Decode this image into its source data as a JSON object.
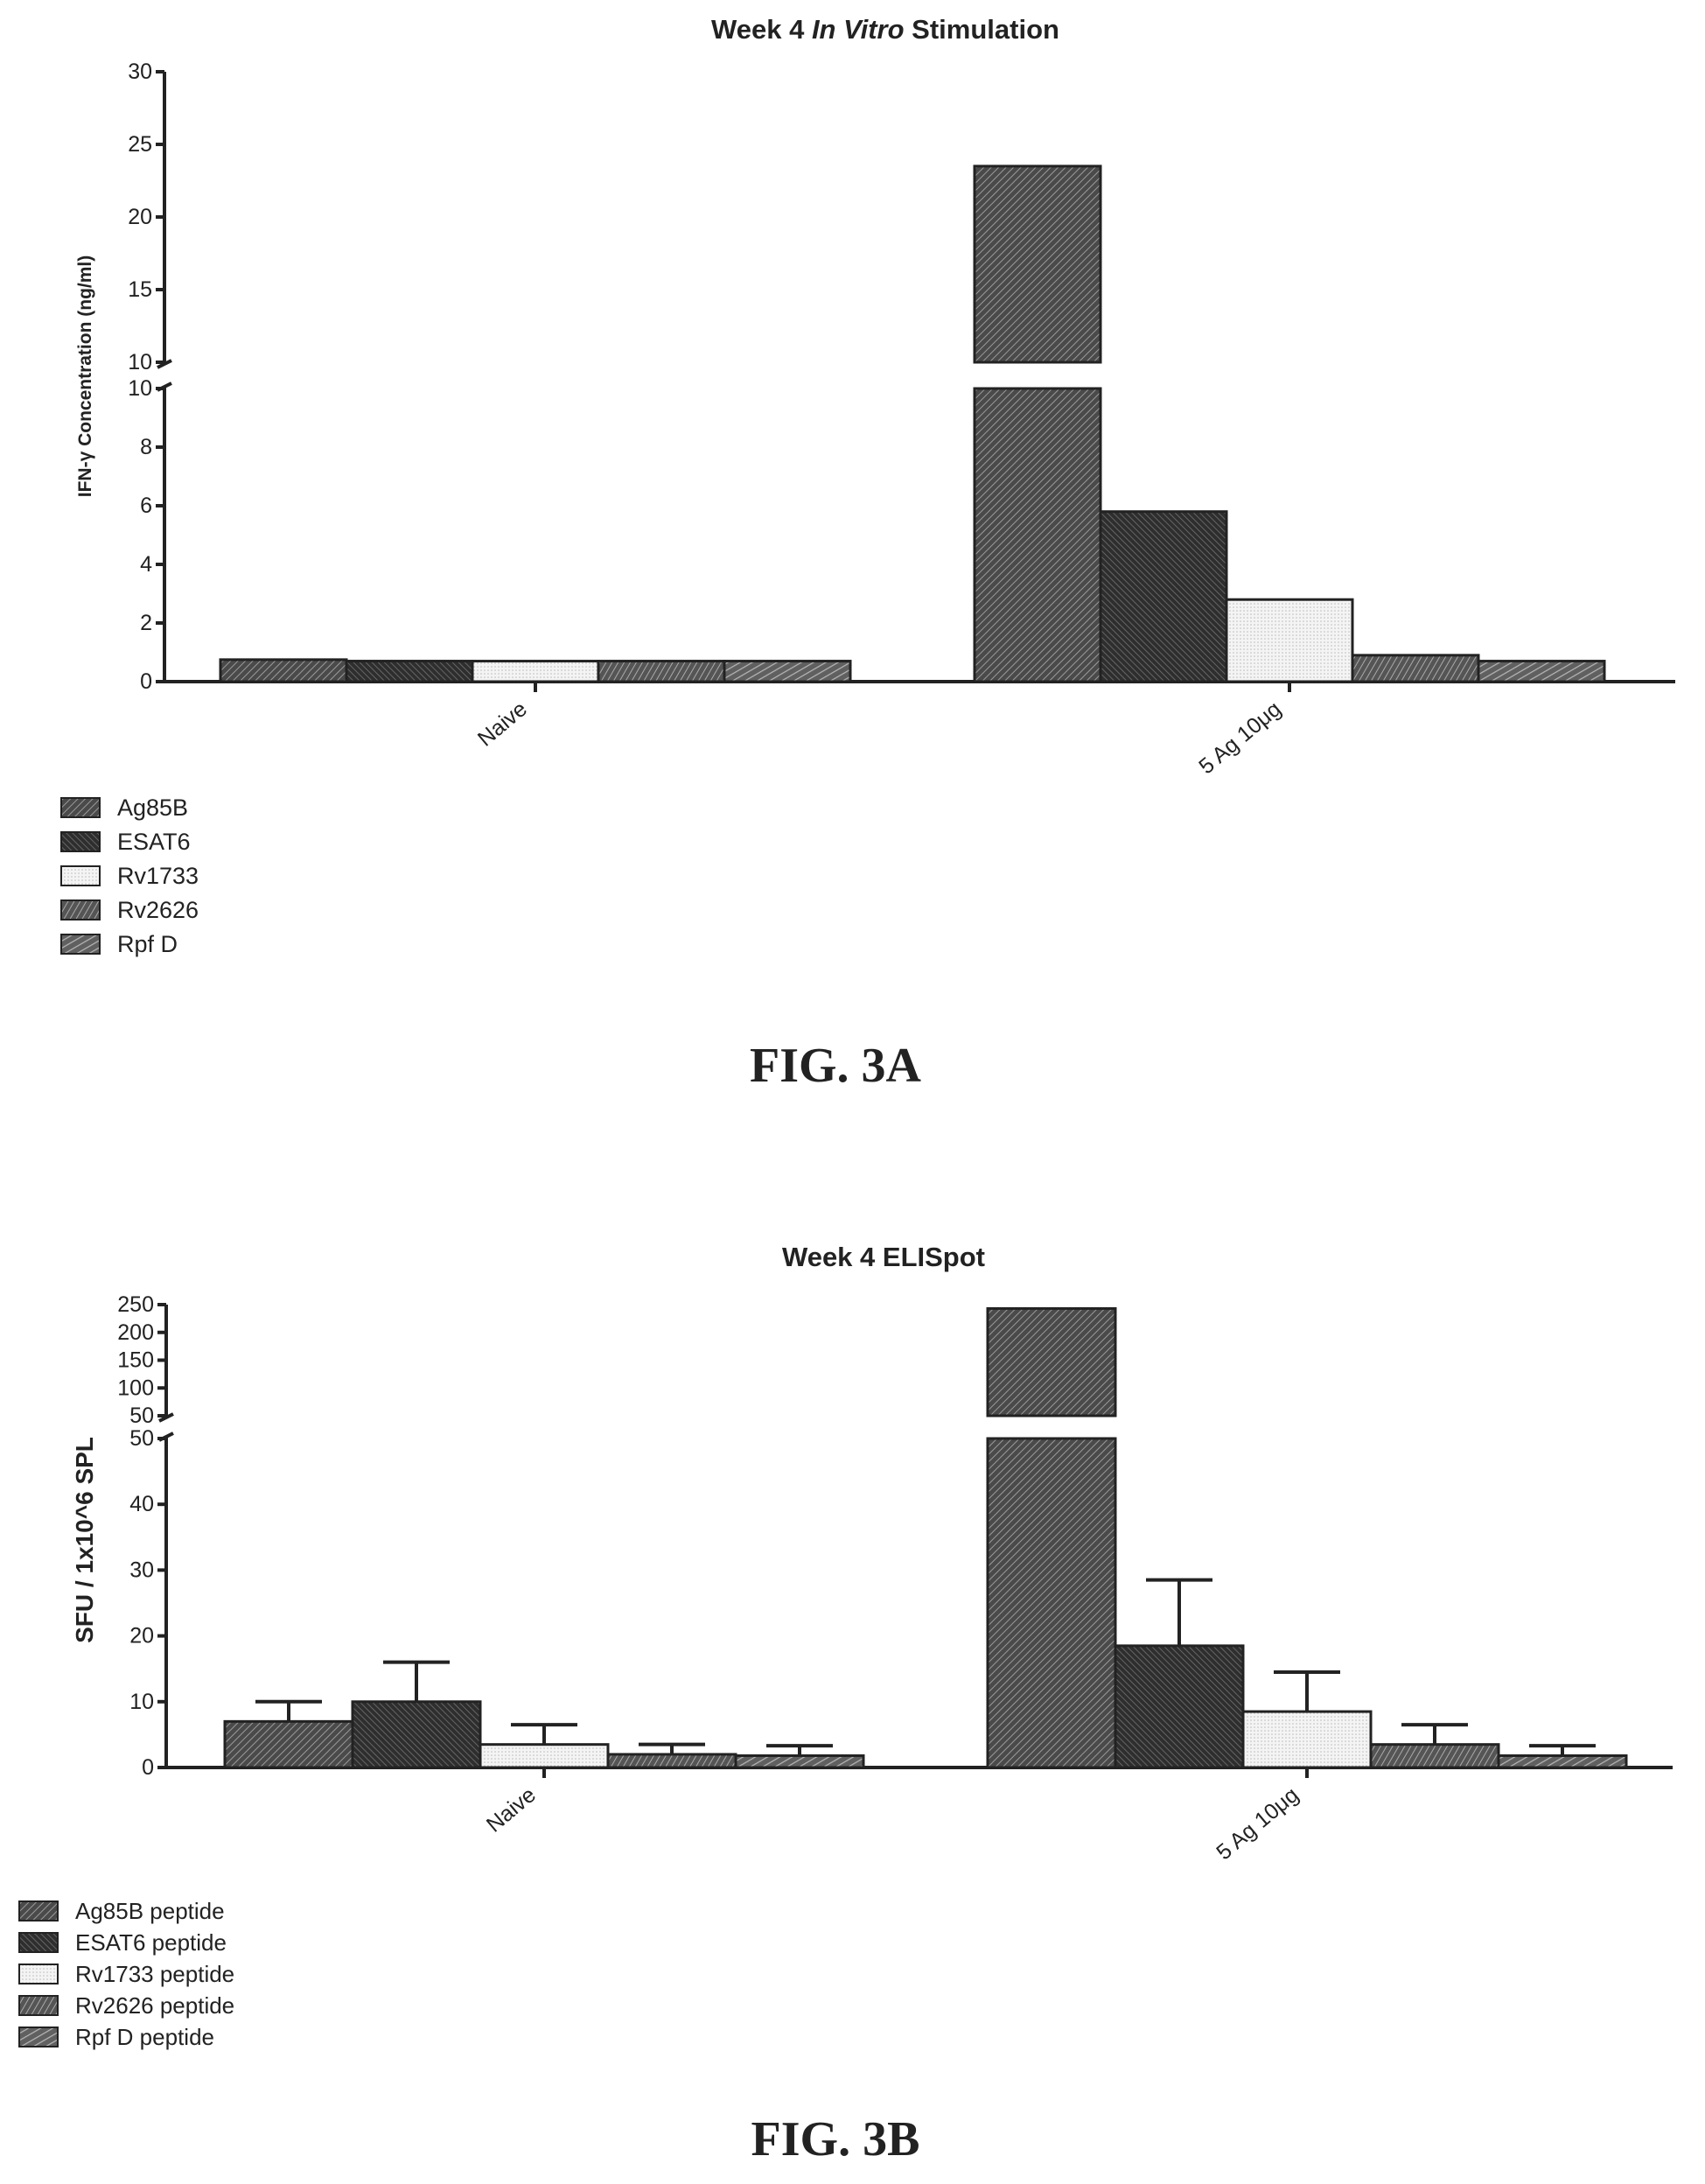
{
  "colors": {
    "pattern_dark": "#3a3a3a",
    "pattern_mid": "#5a5a5a",
    "pattern_light": "#e8e8e8",
    "axis": "#222222"
  },
  "chart_data": [
    {
      "type": "bar",
      "title_prefix": "Week 4 ",
      "title_italic": "In Vitro",
      "title_suffix": " Stimulation",
      "ylabel": "IFN-γ Concentration (ng/ml)",
      "xlabel": "",
      "categories": [
        "Naive",
        "5 Ag 10μg"
      ],
      "broken_axis": true,
      "lower_range": [
        0,
        10
      ],
      "upper_range": [
        10,
        30
      ],
      "lower_ticks": [
        "0",
        "2",
        "4",
        "6",
        "8",
        "10"
      ],
      "upper_ticks": [
        "10",
        "15",
        "20",
        "25",
        "30"
      ],
      "legend_position": "bottom-left",
      "series": [
        {
          "name": "Ag85B",
          "values": [
            0.75,
            23.5
          ]
        },
        {
          "name": "ESAT6",
          "values": [
            0.7,
            5.8
          ]
        },
        {
          "name": "Rv1733",
          "values": [
            0.7,
            2.8
          ]
        },
        {
          "name": "Rv2626",
          "values": [
            0.7,
            0.9
          ]
        },
        {
          "name": "Rpf D",
          "values": [
            0.7,
            0.7
          ]
        }
      ],
      "figure_label": "FIG. 3A"
    },
    {
      "type": "bar",
      "title": "Week 4 ELISpot",
      "ylabel": "SFU / 1x10^6 SPL",
      "xlabel": "",
      "categories": [
        "Naive",
        "5 Ag 10μg"
      ],
      "broken_axis": true,
      "lower_range": [
        0,
        50
      ],
      "upper_range": [
        50,
        250
      ],
      "lower_ticks": [
        "0",
        "10",
        "20",
        "30",
        "40",
        "50"
      ],
      "upper_ticks": [
        "50",
        "100",
        "150",
        "200",
        "250"
      ],
      "legend_position": "bottom-left",
      "series": [
        {
          "name": "Ag85B peptide",
          "values": [
            7,
            243
          ],
          "errors": [
            3,
            0
          ]
        },
        {
          "name": "ESAT6 peptide",
          "values": [
            10,
            18.5
          ],
          "errors": [
            6,
            10
          ]
        },
        {
          "name": "Rv1733 peptide",
          "values": [
            3.5,
            8.5
          ],
          "errors": [
            3,
            6
          ]
        },
        {
          "name": "Rv2626 peptide",
          "values": [
            2,
            3.5
          ],
          "errors": [
            1.5,
            3
          ]
        },
        {
          "name": "Rpf D peptide",
          "values": [
            1.8,
            1.8
          ],
          "errors": [
            1.5,
            1.5
          ]
        }
      ],
      "figure_label": "FIG. 3B"
    }
  ]
}
